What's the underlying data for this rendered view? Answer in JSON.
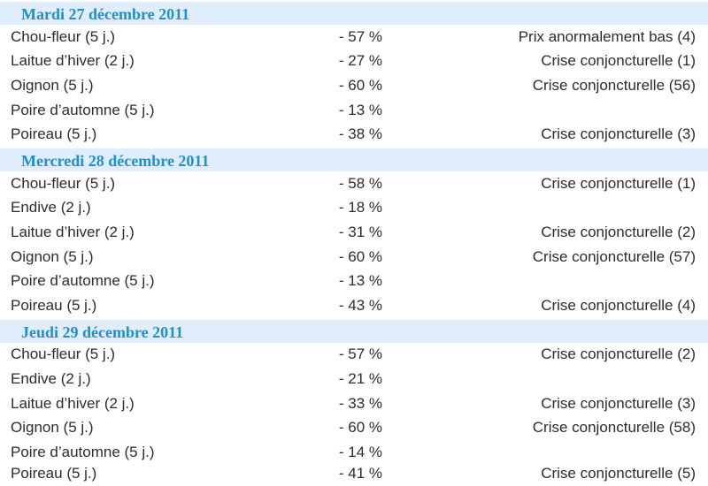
{
  "sections": [
    {
      "title": "Mardi 27 décembre 2011",
      "rows": [
        {
          "product": "Chou-fleur (5 j.)",
          "change": "- 57 %",
          "status": "Prix anormalement bas (4)"
        },
        {
          "product": "Laitue d’hiver (2 j.)",
          "change": "- 27 %",
          "status": "Crise conjoncturelle (1)"
        },
        {
          "product": "Oignon (5 j.)",
          "change": "- 60 %",
          "status": "Crise conjoncturelle (56)"
        },
        {
          "product": "Poire d’automne (5 j.)",
          "change": "- 13 %",
          "status": ""
        },
        {
          "product": "Poireau (5 j.)",
          "change": "- 38 %",
          "status": "Crise conjoncturelle (3)"
        }
      ]
    },
    {
      "title": "Mercredi 28 décembre 2011",
      "rows": [
        {
          "product": "Chou-fleur (5 j.)",
          "change": "- 58 %",
          "status": "Crise conjoncturelle (1)"
        },
        {
          "product": "Endive (2 j.)",
          "change": "- 18 %",
          "status": ""
        },
        {
          "product": "Laitue d’hiver (2 j.)",
          "change": "- 31 %",
          "status": "Crise conjoncturelle (2)"
        },
        {
          "product": "Oignon (5 j.)",
          "change": "- 60 %",
          "status": "Crise conjoncturelle (57)"
        },
        {
          "product": "Poire d’automne (5 j.)",
          "change": "- 13 %",
          "status": ""
        },
        {
          "product": "Poireau (5 j.)",
          "change": "- 43 %",
          "status": "Crise conjoncturelle (4)"
        }
      ]
    },
    {
      "title": "Jeudi 29 décembre 2011",
      "rows": [
        {
          "product": "Chou-fleur (5 j.)",
          "change": "- 57 %",
          "status": "Crise conjoncturelle (2)"
        },
        {
          "product": "Endive (2 j.)",
          "change": "- 21 %",
          "status": ""
        },
        {
          "product": "Laitue d’hiver (2 j.)",
          "change": "- 33 %",
          "status": "Crise conjoncturelle (3)"
        },
        {
          "product": "Oignon (5 j.)",
          "change": "- 60 %",
          "status": "Crise conjoncturelle (58)"
        },
        {
          "product": "Poire d’automne (5 j.)",
          "change": "- 14 %",
          "status": ""
        },
        {
          "product": "Poireau (5 j.)",
          "change": "- 41 %",
          "status": "Crise conjoncturelle (5)"
        }
      ]
    }
  ],
  "colors": {
    "header_bg": "#dfeefa",
    "header_text": "#1f8fcd",
    "body_text": "#2c2c2c"
  }
}
